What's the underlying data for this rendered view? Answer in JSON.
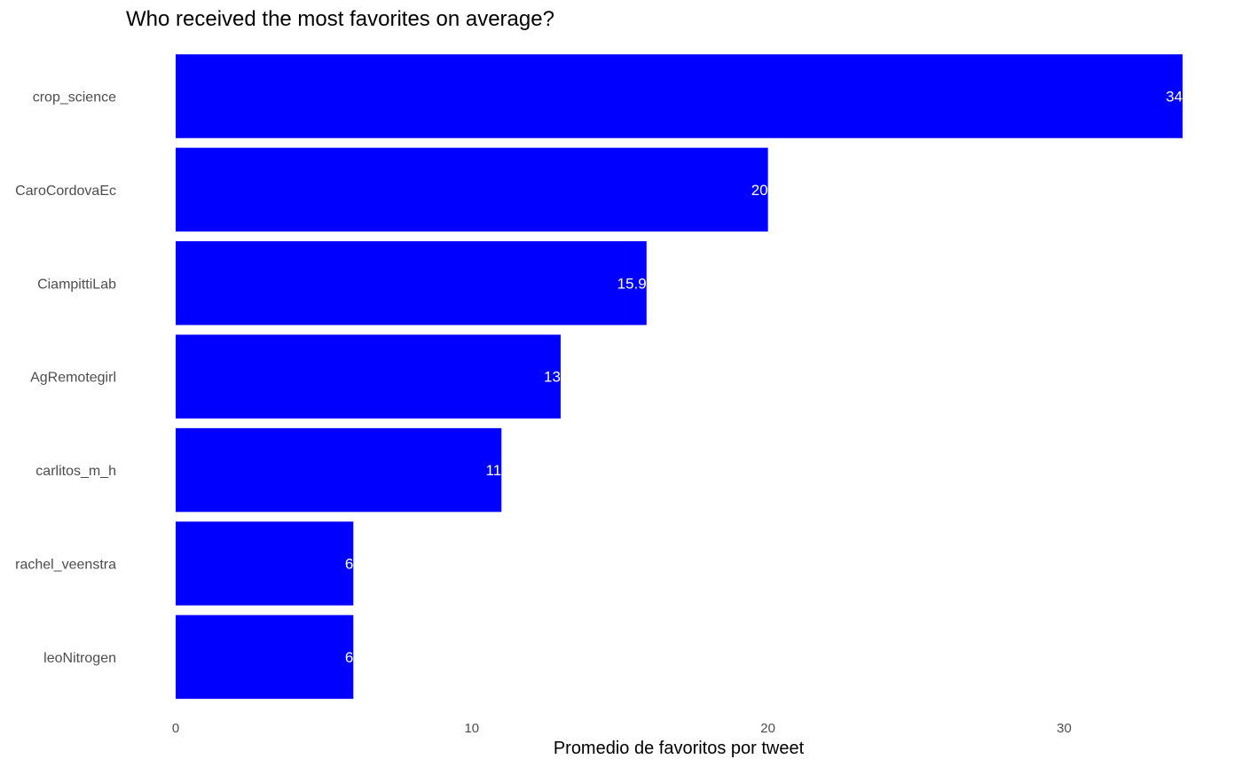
{
  "chart_data": {
    "type": "bar",
    "orientation": "horizontal",
    "title": "Who received the most favorites on average?",
    "xlabel": "Promedio de favoritos por tweet",
    "ylabel": "",
    "categories": [
      "crop_science",
      "CaroCordovaEc",
      "CiampittiLab",
      "AgRemotegirl",
      "carlitos_m_h",
      "rachel_veenstra",
      "leoNitrogen"
    ],
    "values": [
      34,
      20,
      15.9,
      13,
      11,
      6,
      6
    ],
    "value_labels": [
      "34",
      "20",
      "15.9",
      "13",
      "11",
      "6",
      "6"
    ],
    "xlim": [
      0,
      34
    ],
    "xticks": [
      0,
      10,
      20,
      30
    ],
    "xtick_labels": [
      "0",
      "10",
      "20",
      "30"
    ],
    "grid": false,
    "legend": "none",
    "bar_color": "#0000ff"
  }
}
